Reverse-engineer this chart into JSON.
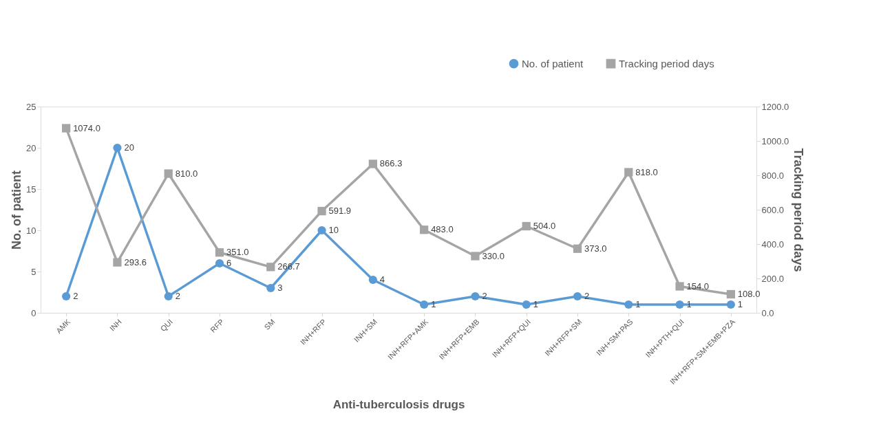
{
  "chart_data": {
    "type": "line",
    "xlabel": "Anti-tuberculosis drugs",
    "ylabel": "No. of patient",
    "y2label": "Tracking period days",
    "categories": [
      "AMK",
      "INH",
      "QUI",
      "RFP",
      "SM",
      "INH+RFP",
      "INH+SM",
      "INH+RFP+AMK",
      "INH+RFP+EMB",
      "INH+RFP+QUI",
      "INH+RFP+SM",
      "INH+SM+PAS",
      "INH+PTH+QUI",
      "INH+RFP+SM+EMB+PZA"
    ],
    "series": [
      {
        "name": "No. of patient",
        "color": "#5b9bd5",
        "marker": "circle",
        "values": [
          2,
          20,
          2,
          6,
          3,
          10,
          4,
          1,
          2,
          1,
          2,
          1,
          1,
          1
        ],
        "value_labels": [
          "2",
          "20",
          "2",
          "6",
          "3",
          "10",
          "4",
          "1",
          "2",
          "1",
          "2",
          "1",
          "1",
          "1"
        ]
      },
      {
        "name": "Tracking period days",
        "color": "#a5a5a5",
        "marker": "square",
        "axis": "y2",
        "values": [
          1074.0,
          293.6,
          810.0,
          351.0,
          266.7,
          591.9,
          866.3,
          483.0,
          330.0,
          504.0,
          373.0,
          818.0,
          154.0,
          108.0
        ],
        "value_labels": [
          "1074.0",
          "293.6",
          "810.0",
          "351.0",
          "266.7",
          "591.9",
          "866.3",
          "483.0",
          "330.0",
          "504.0",
          "373.0",
          "818.0",
          "154.0",
          "108.0"
        ]
      }
    ],
    "ylim": [
      0,
      25
    ],
    "yticks": [
      0,
      5,
      10,
      15,
      20,
      25
    ],
    "y2lim": [
      0,
      1200
    ],
    "y2ticks": [
      {
        "value": 0,
        "label": "0.0"
      },
      {
        "value": 200,
        "label": "200.0"
      },
      {
        "value": 400,
        "label": "400.0"
      },
      {
        "value": 600,
        "label": "600.0"
      },
      {
        "value": 800,
        "label": "800.0"
      },
      {
        "value": 1000,
        "label": "1000.0"
      },
      {
        "value": 1200,
        "label": "1200.0"
      }
    ],
    "grid": false,
    "legend": "top right"
  }
}
